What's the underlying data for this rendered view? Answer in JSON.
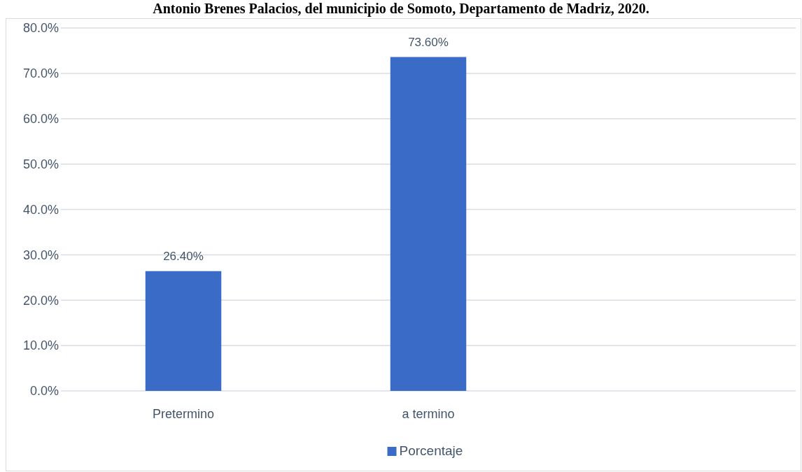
{
  "chart_data": {
    "type": "bar",
    "title": "Antonio Brenes Palacios, del municipio de Somoto, Departamento de Madriz, 2020.",
    "categories": [
      "Pretermino",
      "a termino",
      null
    ],
    "series": [
      {
        "name": "Porcentaje",
        "color": "#3a6bc6",
        "values": [
          26.4,
          73.6,
          null
        ],
        "value_labels": [
          "26.40%",
          "73.60%",
          null
        ]
      }
    ],
    "ylim": [
      0,
      80
    ],
    "yticks": [
      {
        "value": 0,
        "label": "0.0%"
      },
      {
        "value": 10,
        "label": "10.0%"
      },
      {
        "value": 20,
        "label": "20.0%"
      },
      {
        "value": 30,
        "label": "30.0%"
      },
      {
        "value": 40,
        "label": "40.0%"
      },
      {
        "value": 50,
        "label": "50.0%"
      },
      {
        "value": 60,
        "label": "60.0%"
      },
      {
        "value": 70,
        "label": "70.0%"
      },
      {
        "value": 80,
        "label": "80.0%"
      }
    ],
    "grid": "y",
    "legend": "bottom"
  }
}
